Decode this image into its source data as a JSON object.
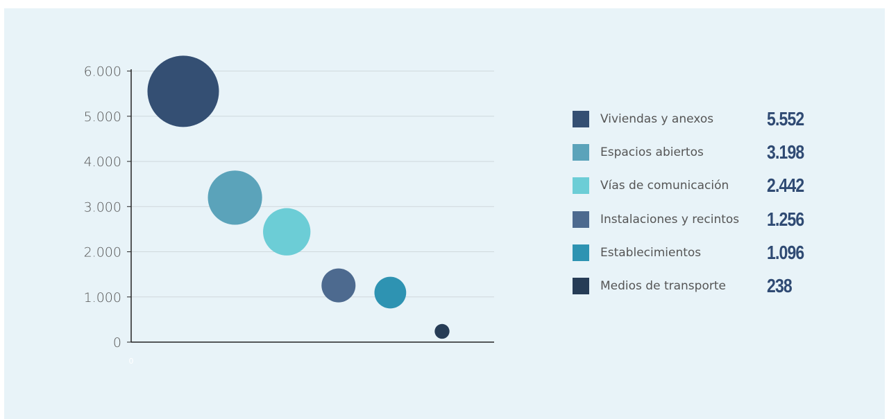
{
  "chart_data": {
    "type": "scatter",
    "subtype": "bubble",
    "title": "",
    "xlabel": "",
    "ylabel": "",
    "ylim": [
      0,
      6500
    ],
    "yticks": [
      "0",
      "1.000",
      "2.000",
      "3.000",
      "4.000",
      "5.000",
      "6.000"
    ],
    "ytick_values": [
      0,
      1000,
      2000,
      3000,
      4000,
      5000,
      6000
    ],
    "xticks": [
      "0"
    ],
    "grid": true,
    "legend_position": "right",
    "series": [
      {
        "name": "Viviendas y anexos",
        "value": 5552,
        "value_label": "5.552",
        "color": "#344f73"
      },
      {
        "name": "Espacios abiertos",
        "value": 3198,
        "value_label": "3.198",
        "color": "#5ba3ba"
      },
      {
        "name": "Vías de comunicación",
        "value": 2442,
        "value_label": "2.442",
        "color": "#6ccdd6"
      },
      {
        "name": "Instalaciones y recintos",
        "value": 1256,
        "value_label": "1.256",
        "color": "#4d6a8f"
      },
      {
        "name": "Establecimientos",
        "value": 1096,
        "value_label": "1.096",
        "color": "#2e93b2"
      },
      {
        "name": "Medios de transporte",
        "value": 238,
        "value_label": "238",
        "color": "#263c56"
      }
    ]
  }
}
